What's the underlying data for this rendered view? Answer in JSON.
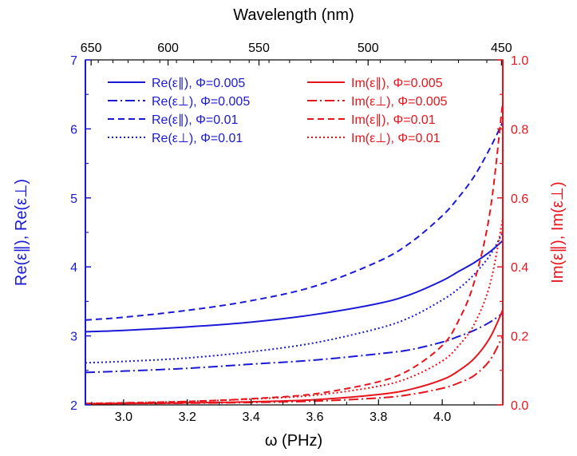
{
  "chart_data": {
    "type": "line",
    "top_axis_title": "Wavelength (nm)",
    "top_ticks": [
      650,
      600,
      550,
      500,
      450
    ],
    "xlabel": "ω (PHz)",
    "xlim": [
      2.88,
      4.19
    ],
    "x_ticks": [
      "3.0",
      "3.2",
      "3.4",
      "3.6",
      "3.8",
      "4.0"
    ],
    "left_ylabel": "Re(ε∥),   Re(ε⊥)",
    "left_ylim": [
      2,
      7
    ],
    "left_ticks": [
      "2",
      "3",
      "4",
      "5",
      "6",
      "7"
    ],
    "right_ylabel": "Im(ε∥),   Im(ε⊥)",
    "right_ylim": [
      0,
      1.0
    ],
    "right_ticks": [
      "0.0",
      "0.2",
      "0.4",
      "0.6",
      "0.8",
      "1.0"
    ],
    "grid": false,
    "colors": {
      "left": "#1a1ad6",
      "right": "#e8141c"
    },
    "x": [
      2.88,
      3.0,
      3.2,
      3.4,
      3.6,
      3.8,
      3.9,
      4.0,
      4.05,
      4.1,
      4.15,
      4.19
    ],
    "series": [
      {
        "name": "Re(ε∥), Φ=0.005",
        "axis": "left",
        "dash": "solid",
        "values": [
          3.06,
          3.08,
          3.13,
          3.2,
          3.31,
          3.47,
          3.6,
          3.8,
          3.93,
          4.06,
          4.22,
          4.38
        ]
      },
      {
        "name": "Re(ε⊥), Φ=0.005",
        "axis": "left",
        "dash": "dashdot",
        "values": [
          2.47,
          2.49,
          2.53,
          2.59,
          2.65,
          2.74,
          2.8,
          2.91,
          2.99,
          3.08,
          3.2,
          3.33
        ]
      },
      {
        "name": "Re(ε∥), Φ=0.01",
        "axis": "left",
        "dash": "dash",
        "values": [
          3.23,
          3.27,
          3.37,
          3.51,
          3.72,
          4.08,
          4.35,
          4.74,
          5.0,
          5.31,
          5.72,
          6.1
        ]
      },
      {
        "name": "Re(ε⊥), Φ=0.01",
        "axis": "left",
        "dash": "dot",
        "values": [
          2.61,
          2.63,
          2.68,
          2.77,
          2.9,
          3.11,
          3.27,
          3.52,
          3.68,
          3.89,
          4.17,
          4.5
        ]
      },
      {
        "name": "Im(ε∥), Φ=0.005",
        "axis": "right",
        "dash": "solid",
        "values": [
          0.003,
          0.004,
          0.006,
          0.009,
          0.015,
          0.03,
          0.045,
          0.073,
          0.098,
          0.134,
          0.195,
          0.275
        ]
      },
      {
        "name": "Im(ε⊥), Φ=0.005",
        "axis": "right",
        "dash": "dashdot",
        "values": [
          0.003,
          0.004,
          0.005,
          0.007,
          0.011,
          0.02,
          0.03,
          0.048,
          0.063,
          0.085,
          0.13,
          0.2
        ]
      },
      {
        "name": "Im(ε∥), Φ=0.01",
        "axis": "right",
        "dash": "dash",
        "values": [
          0.004,
          0.006,
          0.01,
          0.018,
          0.032,
          0.067,
          0.103,
          0.172,
          0.242,
          0.355,
          0.56,
          0.88
        ]
      },
      {
        "name": "Im(ε⊥), Φ=0.01",
        "axis": "right",
        "dash": "dot",
        "values": [
          0.004,
          0.006,
          0.01,
          0.017,
          0.028,
          0.054,
          0.08,
          0.127,
          0.17,
          0.233,
          0.35,
          0.54
        ]
      }
    ]
  }
}
